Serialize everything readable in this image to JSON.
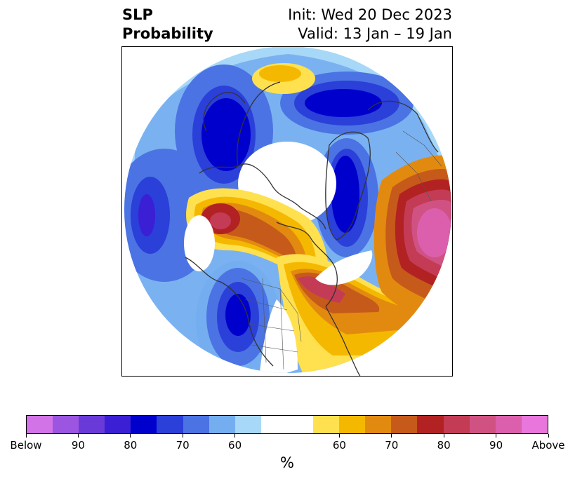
{
  "title": {
    "left_line1": "SLP",
    "left_line2": "Probability",
    "right_line1": "Init: Wed 20 Dec 2023",
    "right_line2": "Valid: 13 Jan – 19 Jan"
  },
  "colorbar": {
    "unit": "%",
    "colors": [
      "#d273e8",
      "#9b55e0",
      "#6a3ad9",
      "#3a1fd4",
      "#0000cc",
      "#2b3fd9",
      "#4b73e3",
      "#74aef0",
      "#a8d8f7",
      "#ffffff",
      "#ffffff",
      "#ffe14f",
      "#f5b800",
      "#e28a10",
      "#c65a1a",
      "#b22222",
      "#c43b56",
      "#d05283",
      "#db5fad",
      "#e876dc"
    ],
    "tick_labels": [
      "Below",
      "90",
      "80",
      "70",
      "60",
      "60",
      "70",
      "80",
      "90",
      "Above"
    ]
  },
  "map": {
    "projection": "north polar stereographic",
    "legend_categories": [
      "Below",
      "Above"
    ]
  }
}
